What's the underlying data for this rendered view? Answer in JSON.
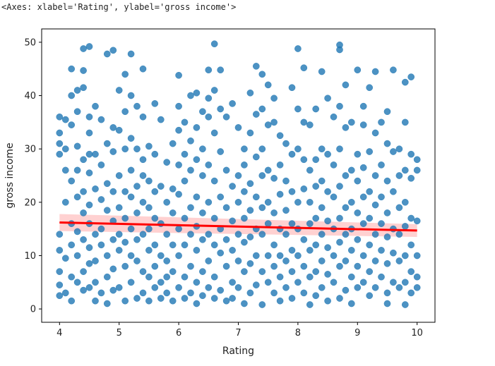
{
  "output_repr": "<Axes: xlabel='Rating', ylabel='gross income'>",
  "chart_data": {
    "type": "scatter",
    "xlabel": "Rating",
    "ylabel": "gross income",
    "xlim": [
      3.7,
      10.3
    ],
    "ylim": [
      -2.5,
      52.5
    ],
    "xticks": [
      4,
      5,
      6,
      7,
      8,
      9,
      10
    ],
    "yticks": [
      0,
      10,
      20,
      30,
      40,
      50
    ],
    "grid": false,
    "point_color": "#1f77b4",
    "regression": {
      "color": "#ff0000",
      "band_color": "#ffb3b3",
      "x": [
        4,
        10
      ],
      "y": [
        16.2,
        14.7
      ],
      "band_halfwidth": [
        1.6,
        1.2
      ]
    },
    "points": [
      [
        4.0,
        29.0
      ],
      [
        4.0,
        31.0
      ],
      [
        4.0,
        33.0
      ],
      [
        4.0,
        11.0
      ],
      [
        4.0,
        7.0
      ],
      [
        4.0,
        4.5
      ],
      [
        4.0,
        2.5
      ],
      [
        4.0,
        14.0
      ],
      [
        4.0,
        36.0
      ],
      [
        4.1,
        30.0
      ],
      [
        4.1,
        26.0
      ],
      [
        4.1,
        20.0
      ],
      [
        4.1,
        9.5
      ],
      [
        4.1,
        3.0
      ],
      [
        4.1,
        35.5
      ],
      [
        4.2,
        45.0
      ],
      [
        4.2,
        40.0
      ],
      [
        4.2,
        34.5
      ],
      [
        4.2,
        24.0
      ],
      [
        4.2,
        16.0
      ],
      [
        4.2,
        12.0
      ],
      [
        4.2,
        6.0
      ],
      [
        4.2,
        1.5
      ],
      [
        4.3,
        41.0
      ],
      [
        4.3,
        37.0
      ],
      [
        4.3,
        30.5
      ],
      [
        4.3,
        26.0
      ],
      [
        4.3,
        21.0
      ],
      [
        4.3,
        14.5
      ],
      [
        4.3,
        10.0
      ],
      [
        4.3,
        5.0
      ],
      [
        4.4,
        48.8
      ],
      [
        4.4,
        44.7
      ],
      [
        4.4,
        41.5
      ],
      [
        4.4,
        28.0
      ],
      [
        4.4,
        22.0
      ],
      [
        4.4,
        18.0
      ],
      [
        4.4,
        13.0
      ],
      [
        4.4,
        7.0
      ],
      [
        4.4,
        3.5
      ],
      [
        4.5,
        49.2
      ],
      [
        4.5,
        36.0
      ],
      [
        4.5,
        33.0
      ],
      [
        4.5,
        29.0
      ],
      [
        4.5,
        25.5
      ],
      [
        4.5,
        19.5
      ],
      [
        4.5,
        16.0
      ],
      [
        4.5,
        11.5
      ],
      [
        4.5,
        8.5
      ],
      [
        4.5,
        4.0
      ],
      [
        4.6,
        38.0
      ],
      [
        4.6,
        29.0
      ],
      [
        4.6,
        22.5
      ],
      [
        4.6,
        14.0
      ],
      [
        4.6,
        9.0
      ],
      [
        4.6,
        5.0
      ],
      [
        4.6,
        1.5
      ],
      [
        4.7,
        35.5
      ],
      [
        4.7,
        27.0
      ],
      [
        4.7,
        20.5
      ],
      [
        4.7,
        15.0
      ],
      [
        4.7,
        12.0
      ],
      [
        4.7,
        3.0
      ],
      [
        4.8,
        47.8
      ],
      [
        4.8,
        31.0
      ],
      [
        4.8,
        23.5
      ],
      [
        4.8,
        18.5
      ],
      [
        4.8,
        10.0
      ],
      [
        4.8,
        6.0
      ],
      [
        4.8,
        1.0
      ],
      [
        4.9,
        48.5
      ],
      [
        4.9,
        34.0
      ],
      [
        4.9,
        29.5
      ],
      [
        4.9,
        22.0
      ],
      [
        4.9,
        16.5
      ],
      [
        4.9,
        13.0
      ],
      [
        4.9,
        7.5
      ],
      [
        4.9,
        3.5
      ],
      [
        5.0,
        41.0
      ],
      [
        5.0,
        33.5
      ],
      [
        5.0,
        25.0
      ],
      [
        5.0,
        19.0
      ],
      [
        5.0,
        14.0
      ],
      [
        5.0,
        11.0
      ],
      [
        5.0,
        4.0
      ],
      [
        5.1,
        44.0
      ],
      [
        5.1,
        37.0
      ],
      [
        5.1,
        30.0
      ],
      [
        5.1,
        22.0
      ],
      [
        5.1,
        17.0
      ],
      [
        5.1,
        12.5
      ],
      [
        5.1,
        8.0
      ],
      [
        5.1,
        1.5
      ],
      [
        5.2,
        47.8
      ],
      [
        5.2,
        40.0
      ],
      [
        5.2,
        32.0
      ],
      [
        5.2,
        26.0
      ],
      [
        5.2,
        21.0
      ],
      [
        5.2,
        15.0
      ],
      [
        5.2,
        10.0
      ],
      [
        5.2,
        5.0
      ],
      [
        5.3,
        38.0
      ],
      [
        5.3,
        30.0
      ],
      [
        5.3,
        23.0
      ],
      [
        5.3,
        18.0
      ],
      [
        5.3,
        13.0
      ],
      [
        5.3,
        9.0
      ],
      [
        5.3,
        2.0
      ],
      [
        5.4,
        45.0
      ],
      [
        5.4,
        36.0
      ],
      [
        5.4,
        28.0
      ],
      [
        5.4,
        25.0
      ],
      [
        5.4,
        20.0
      ],
      [
        5.4,
        14.0
      ],
      [
        5.4,
        7.0
      ],
      [
        5.4,
        3.0
      ],
      [
        5.5,
        30.5
      ],
      [
        5.5,
        24.0
      ],
      [
        5.5,
        19.0
      ],
      [
        5.5,
        15.0
      ],
      [
        5.5,
        11.0
      ],
      [
        5.5,
        6.0
      ],
      [
        5.5,
        1.5
      ],
      [
        5.6,
        38.5
      ],
      [
        5.6,
        29.0
      ],
      [
        5.6,
        22.0
      ],
      [
        5.6,
        17.0
      ],
      [
        5.6,
        12.0
      ],
      [
        5.6,
        8.0
      ],
      [
        5.6,
        4.0
      ],
      [
        5.7,
        35.5
      ],
      [
        5.7,
        23.0
      ],
      [
        5.7,
        16.0
      ],
      [
        5.7,
        10.0
      ],
      [
        5.7,
        5.0
      ],
      [
        5.7,
        2.0
      ],
      [
        5.8,
        27.5
      ],
      [
        5.8,
        20.0
      ],
      [
        5.8,
        14.0
      ],
      [
        5.8,
        9.0
      ],
      [
        5.8,
        6.0
      ],
      [
        5.8,
        3.0
      ],
      [
        5.9,
        31.0
      ],
      [
        5.9,
        22.5
      ],
      [
        5.9,
        18.0
      ],
      [
        5.9,
        12.0
      ],
      [
        5.9,
        7.0
      ],
      [
        5.9,
        1.5
      ],
      [
        6.0,
        43.8
      ],
      [
        6.0,
        38.0
      ],
      [
        6.0,
        33.5
      ],
      [
        6.0,
        27.0
      ],
      [
        6.0,
        21.5
      ],
      [
        6.0,
        15.0
      ],
      [
        6.0,
        10.0
      ],
      [
        6.0,
        4.0
      ],
      [
        6.1,
        35.0
      ],
      [
        6.1,
        29.0
      ],
      [
        6.1,
        24.0
      ],
      [
        6.1,
        17.0
      ],
      [
        6.1,
        12.0
      ],
      [
        6.1,
        6.0
      ],
      [
        6.1,
        2.0
      ],
      [
        6.2,
        40.0
      ],
      [
        6.2,
        31.5
      ],
      [
        6.2,
        26.0
      ],
      [
        6.2,
        19.0
      ],
      [
        6.2,
        14.0
      ],
      [
        6.2,
        8.0
      ],
      [
        6.2,
        3.0
      ],
      [
        6.3,
        40.5
      ],
      [
        6.3,
        34.0
      ],
      [
        6.3,
        28.0
      ],
      [
        6.3,
        21.0
      ],
      [
        6.3,
        15.5
      ],
      [
        6.3,
        11.0
      ],
      [
        6.3,
        5.0
      ],
      [
        6.3,
        1.0
      ],
      [
        6.4,
        37.0
      ],
      [
        6.4,
        30.0
      ],
      [
        6.4,
        25.0
      ],
      [
        6.4,
        18.0
      ],
      [
        6.4,
        13.0
      ],
      [
        6.4,
        7.0
      ],
      [
        6.4,
        2.5
      ],
      [
        6.5,
        44.8
      ],
      [
        6.5,
        39.5
      ],
      [
        6.5,
        36.0
      ],
      [
        6.5,
        27.0
      ],
      [
        6.5,
        20.0
      ],
      [
        6.5,
        14.0
      ],
      [
        6.5,
        9.0
      ],
      [
        6.5,
        4.0
      ],
      [
        6.6,
        49.7
      ],
      [
        6.6,
        41.0
      ],
      [
        6.6,
        33.0
      ],
      [
        6.6,
        24.0
      ],
      [
        6.6,
        17.0
      ],
      [
        6.6,
        12.0
      ],
      [
        6.6,
        6.0
      ],
      [
        6.6,
        2.0
      ],
      [
        6.7,
        44.8
      ],
      [
        6.7,
        37.5
      ],
      [
        6.7,
        29.5
      ],
      [
        6.7,
        21.0
      ],
      [
        6.7,
        15.0
      ],
      [
        6.7,
        10.5
      ],
      [
        6.7,
        3.5
      ],
      [
        6.8,
        36.0
      ],
      [
        6.8,
        26.0
      ],
      [
        6.8,
        19.0
      ],
      [
        6.8,
        13.0
      ],
      [
        6.8,
        8.0
      ],
      [
        6.8,
        1.5
      ],
      [
        6.9,
        38.5
      ],
      [
        6.9,
        23.0
      ],
      [
        6.9,
        16.5
      ],
      [
        6.9,
        11.0
      ],
      [
        6.9,
        5.0
      ],
      [
        6.9,
        2.0
      ],
      [
        7.0,
        34.0
      ],
      [
        7.0,
        25.0
      ],
      [
        7.0,
        20.0
      ],
      [
        7.0,
        14.0
      ],
      [
        7.0,
        9.0
      ],
      [
        7.0,
        4.0
      ],
      [
        7.1,
        30.0
      ],
      [
        7.1,
        27.0
      ],
      [
        7.1,
        22.0
      ],
      [
        7.1,
        17.0
      ],
      [
        7.1,
        12.5
      ],
      [
        7.1,
        7.0
      ],
      [
        7.1,
        1.0
      ],
      [
        7.2,
        40.5
      ],
      [
        7.2,
        33.0
      ],
      [
        7.2,
        23.5
      ],
      [
        7.2,
        18.5
      ],
      [
        7.2,
        13.5
      ],
      [
        7.2,
        8.5
      ],
      [
        7.2,
        3.0
      ],
      [
        7.3,
        45.5
      ],
      [
        7.3,
        36.5
      ],
      [
        7.3,
        28.5
      ],
      [
        7.3,
        21.0
      ],
      [
        7.3,
        15.0
      ],
      [
        7.3,
        10.0
      ],
      [
        7.3,
        4.5
      ],
      [
        7.4,
        44.0
      ],
      [
        7.4,
        37.5
      ],
      [
        7.4,
        30.0
      ],
      [
        7.4,
        25.0
      ],
      [
        7.4,
        19.0
      ],
      [
        7.4,
        14.0
      ],
      [
        7.4,
        7.0
      ],
      [
        7.4,
        0.8
      ],
      [
        7.5,
        42.0
      ],
      [
        7.5,
        34.5
      ],
      [
        7.5,
        26.0
      ],
      [
        7.5,
        20.0
      ],
      [
        7.5,
        16.0
      ],
      [
        7.5,
        10.0
      ],
      [
        7.5,
        5.0
      ],
      [
        7.6,
        39.5
      ],
      [
        7.6,
        35.0
      ],
      [
        7.6,
        24.5
      ],
      [
        7.6,
        18.0
      ],
      [
        7.6,
        12.0
      ],
      [
        7.6,
        8.0
      ],
      [
        7.6,
        3.0
      ],
      [
        7.7,
        32.5
      ],
      [
        7.7,
        27.0
      ],
      [
        7.7,
        21.5
      ],
      [
        7.7,
        15.0
      ],
      [
        7.7,
        10.0
      ],
      [
        7.7,
        6.0
      ],
      [
        7.7,
        1.5
      ],
      [
        7.8,
        31.0
      ],
      [
        7.8,
        24.0
      ],
      [
        7.8,
        18.5
      ],
      [
        7.8,
        14.0
      ],
      [
        7.8,
        9.0
      ],
      [
        7.8,
        4.0
      ],
      [
        7.9,
        41.5
      ],
      [
        7.9,
        29.0
      ],
      [
        7.9,
        22.0
      ],
      [
        7.9,
        16.0
      ],
      [
        7.9,
        11.0
      ],
      [
        7.9,
        7.0
      ],
      [
        7.9,
        2.0
      ],
      [
        8.0,
        48.8
      ],
      [
        8.0,
        37.5
      ],
      [
        8.0,
        30.0
      ],
      [
        8.0,
        20.0
      ],
      [
        8.0,
        15.0
      ],
      [
        8.0,
        10.0
      ],
      [
        8.0,
        5.0
      ],
      [
        8.1,
        45.2
      ],
      [
        8.1,
        35.0
      ],
      [
        8.1,
        28.0
      ],
      [
        8.1,
        22.5
      ],
      [
        8.1,
        13.0
      ],
      [
        8.1,
        8.0
      ],
      [
        8.1,
        3.0
      ],
      [
        8.2,
        34.5
      ],
      [
        8.2,
        26.0
      ],
      [
        8.2,
        20.0
      ],
      [
        8.2,
        16.0
      ],
      [
        8.2,
        11.0
      ],
      [
        8.2,
        6.0
      ],
      [
        8.2,
        0.8
      ],
      [
        8.3,
        37.5
      ],
      [
        8.3,
        28.0
      ],
      [
        8.3,
        23.0
      ],
      [
        8.3,
        17.0
      ],
      [
        8.3,
        12.0
      ],
      [
        8.3,
        7.0
      ],
      [
        8.3,
        2.5
      ],
      [
        8.4,
        44.5
      ],
      [
        8.4,
        30.0
      ],
      [
        8.4,
        24.0
      ],
      [
        8.4,
        19.0
      ],
      [
        8.4,
        14.0
      ],
      [
        8.4,
        9.0
      ],
      [
        8.4,
        4.0
      ],
      [
        8.5,
        39.5
      ],
      [
        8.5,
        29.0
      ],
      [
        8.5,
        22.0
      ],
      [
        8.5,
        16.5
      ],
      [
        8.5,
        11.5
      ],
      [
        8.5,
        6.5
      ],
      [
        8.5,
        1.5
      ],
      [
        8.6,
        36.0
      ],
      [
        8.6,
        27.0
      ],
      [
        8.6,
        21.0
      ],
      [
        8.6,
        15.0
      ],
      [
        8.6,
        10.0
      ],
      [
        8.6,
        5.0
      ],
      [
        8.7,
        49.5
      ],
      [
        8.7,
        48.6
      ],
      [
        8.7,
        38.0
      ],
      [
        8.7,
        30.0
      ],
      [
        8.7,
        23.0
      ],
      [
        8.7,
        17.0
      ],
      [
        8.7,
        12.5
      ],
      [
        8.7,
        8.0
      ],
      [
        8.7,
        2.0
      ],
      [
        8.8,
        42.0
      ],
      [
        8.8,
        34.0
      ],
      [
        8.8,
        25.0
      ],
      [
        8.8,
        19.0
      ],
      [
        8.8,
        14.0
      ],
      [
        8.8,
        9.0
      ],
      [
        8.8,
        3.5
      ],
      [
        8.9,
        35.0
      ],
      [
        8.9,
        26.0
      ],
      [
        8.9,
        20.0
      ],
      [
        8.9,
        15.0
      ],
      [
        8.9,
        11.0
      ],
      [
        8.9,
        6.0
      ],
      [
        8.9,
        1.0
      ],
      [
        9.0,
        44.8
      ],
      [
        9.0,
        29.0
      ],
      [
        9.0,
        24.0
      ],
      [
        9.0,
        18.0
      ],
      [
        9.0,
        13.0
      ],
      [
        9.0,
        8.0
      ],
      [
        9.0,
        4.0
      ],
      [
        9.1,
        38.0
      ],
      [
        9.1,
        34.5
      ],
      [
        9.1,
        26.5
      ],
      [
        9.1,
        21.0
      ],
      [
        9.1,
        16.0
      ],
      [
        9.1,
        10.0
      ],
      [
        9.1,
        5.0
      ],
      [
        9.2,
        41.5
      ],
      [
        9.2,
        29.5
      ],
      [
        9.2,
        22.0
      ],
      [
        9.2,
        17.0
      ],
      [
        9.2,
        12.0
      ],
      [
        9.2,
        7.0
      ],
      [
        9.2,
        2.5
      ],
      [
        9.3,
        44.5
      ],
      [
        9.3,
        33.0
      ],
      [
        9.3,
        25.0
      ],
      [
        9.3,
        19.5
      ],
      [
        9.3,
        14.0
      ],
      [
        9.3,
        9.0
      ],
      [
        9.3,
        4.0
      ],
      [
        9.4,
        35.0
      ],
      [
        9.4,
        27.0
      ],
      [
        9.4,
        21.0
      ],
      [
        9.4,
        16.0
      ],
      [
        9.4,
        11.0
      ],
      [
        9.4,
        6.0
      ],
      [
        9.5,
        37.0
      ],
      [
        9.5,
        31.0
      ],
      [
        9.5,
        24.0
      ],
      [
        9.5,
        18.0
      ],
      [
        9.5,
        13.5
      ],
      [
        9.5,
        8.5
      ],
      [
        9.5,
        3.0
      ],
      [
        9.5,
        1.0
      ],
      [
        9.6,
        44.8
      ],
      [
        9.6,
        29.5
      ],
      [
        9.6,
        22.0
      ],
      [
        9.6,
        15.0
      ],
      [
        9.6,
        10.5
      ],
      [
        9.6,
        5.0
      ],
      [
        9.7,
        30.0
      ],
      [
        9.7,
        25.0
      ],
      [
        9.7,
        19.0
      ],
      [
        9.7,
        14.0
      ],
      [
        9.7,
        9.0
      ],
      [
        9.7,
        4.0
      ],
      [
        9.8,
        35.0
      ],
      [
        9.8,
        42.5
      ],
      [
        9.8,
        26.0
      ],
      [
        9.8,
        20.0
      ],
      [
        9.8,
        15.5
      ],
      [
        9.8,
        10.0
      ],
      [
        9.8,
        5.0
      ],
      [
        9.8,
        0.8
      ],
      [
        9.9,
        43.5
      ],
      [
        9.9,
        29.0
      ],
      [
        9.9,
        24.5
      ],
      [
        9.9,
        17.0
      ],
      [
        9.9,
        12.0
      ],
      [
        9.9,
        7.0
      ],
      [
        9.9,
        3.0
      ],
      [
        10.0,
        28.0
      ],
      [
        10.0,
        26.0
      ],
      [
        10.0,
        16.5
      ],
      [
        10.0,
        10.0
      ],
      [
        10.0,
        6.0
      ],
      [
        10.0,
        4.0
      ]
    ]
  }
}
